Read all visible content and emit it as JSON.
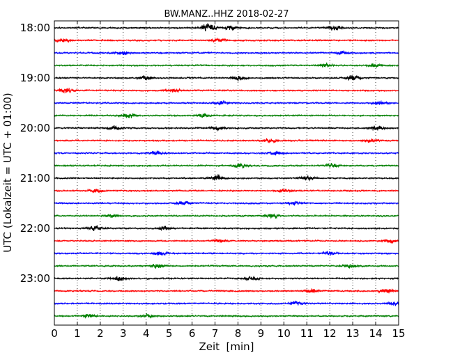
{
  "chart_data": {
    "type": "line",
    "title": "BW.MANZ..HHZ 2018-02-27",
    "xlabel": "Zeit  [min]",
    "ylabel": "UTC (Lokalzeit = UTC + 01:00)",
    "xlim": [
      0,
      15
    ],
    "x_ticks": [
      "0",
      "1",
      "2",
      "3",
      "4",
      "5",
      "6",
      "7",
      "8",
      "9",
      "10",
      "11",
      "12",
      "13",
      "14",
      "15"
    ],
    "y_ticks": [
      "18:00",
      "19:00",
      "20:00",
      "21:00",
      "22:00",
      "23:00"
    ],
    "grid": "vertical dotted",
    "trace_colors": [
      "#000000",
      "#ff0000",
      "#0000ff",
      "#007f00"
    ],
    "traces": [
      {
        "start": "18:00",
        "events": [
          [
            6.7,
            2.4
          ],
          [
            7.7,
            1.2
          ],
          [
            12.2,
            1.4
          ]
        ]
      },
      {
        "start": "18:15",
        "events": [
          [
            0.4,
            1.1
          ],
          [
            7.1,
            1.0
          ]
        ]
      },
      {
        "start": "18:30",
        "events": [
          [
            3.0,
            1.0
          ],
          [
            12.6,
            1.0
          ]
        ]
      },
      {
        "start": "18:45",
        "events": [
          [
            11.8,
            1.1
          ],
          [
            14.0,
            1.0
          ]
        ]
      },
      {
        "start": "19:00",
        "events": [
          [
            4.0,
            1.1
          ],
          [
            8.0,
            1.3
          ],
          [
            13.0,
            1.5
          ]
        ]
      },
      {
        "start": "19:15",
        "events": [
          [
            0.5,
            1.5
          ],
          [
            5.2,
            1.0
          ]
        ]
      },
      {
        "start": "19:30",
        "events": [
          [
            7.3,
            1.0
          ],
          [
            14.2,
            1.0
          ]
        ]
      },
      {
        "start": "19:45",
        "events": [
          [
            3.2,
            1.4
          ],
          [
            6.5,
            1.0
          ]
        ]
      },
      {
        "start": "20:00",
        "events": [
          [
            2.6,
            1.1
          ],
          [
            7.1,
            1.1
          ],
          [
            14.0,
            1.4
          ]
        ]
      },
      {
        "start": "20:15",
        "events": [
          [
            9.4,
            1.2
          ],
          [
            13.8,
            1.0
          ]
        ]
      },
      {
        "start": "20:30",
        "events": [
          [
            4.4,
            1.2
          ],
          [
            9.6,
            1.1
          ]
        ]
      },
      {
        "start": "20:45",
        "events": [
          [
            8.1,
            1.2
          ],
          [
            12.1,
            1.1
          ]
        ]
      },
      {
        "start": "21:00",
        "events": [
          [
            7.1,
            1.7
          ],
          [
            11.0,
            1.1
          ]
        ]
      },
      {
        "start": "21:15",
        "events": [
          [
            1.8,
            1.0
          ],
          [
            10.0,
            1.0
          ]
        ]
      },
      {
        "start": "21:30",
        "events": [
          [
            5.6,
            1.0
          ],
          [
            10.5,
            1.0
          ]
        ]
      },
      {
        "start": "21:45",
        "events": [
          [
            2.5,
            1.0
          ],
          [
            9.5,
            1.2
          ]
        ]
      },
      {
        "start": "22:00",
        "events": [
          [
            1.8,
            1.3
          ],
          [
            4.8,
            1.2
          ]
        ]
      },
      {
        "start": "22:15",
        "events": [
          [
            7.2,
            1.0
          ],
          [
            14.6,
            1.2
          ]
        ]
      },
      {
        "start": "22:30",
        "events": [
          [
            4.6,
            1.1
          ],
          [
            12.0,
            1.0
          ]
        ]
      },
      {
        "start": "22:45",
        "events": [
          [
            4.5,
            1.4
          ],
          [
            12.9,
            1.1
          ]
        ]
      },
      {
        "start": "23:00",
        "events": [
          [
            2.8,
            1.5
          ],
          [
            8.6,
            1.1
          ]
        ]
      },
      {
        "start": "23:15",
        "events": [
          [
            11.2,
            1.4
          ],
          [
            14.5,
            1.2
          ]
        ]
      },
      {
        "start": "23:30",
        "events": [
          [
            10.5,
            1.1
          ],
          [
            14.8,
            1.1
          ]
        ]
      },
      {
        "start": "23:45",
        "events": [
          [
            1.5,
            1.1
          ],
          [
            4.1,
            1.1
          ]
        ]
      }
    ]
  }
}
